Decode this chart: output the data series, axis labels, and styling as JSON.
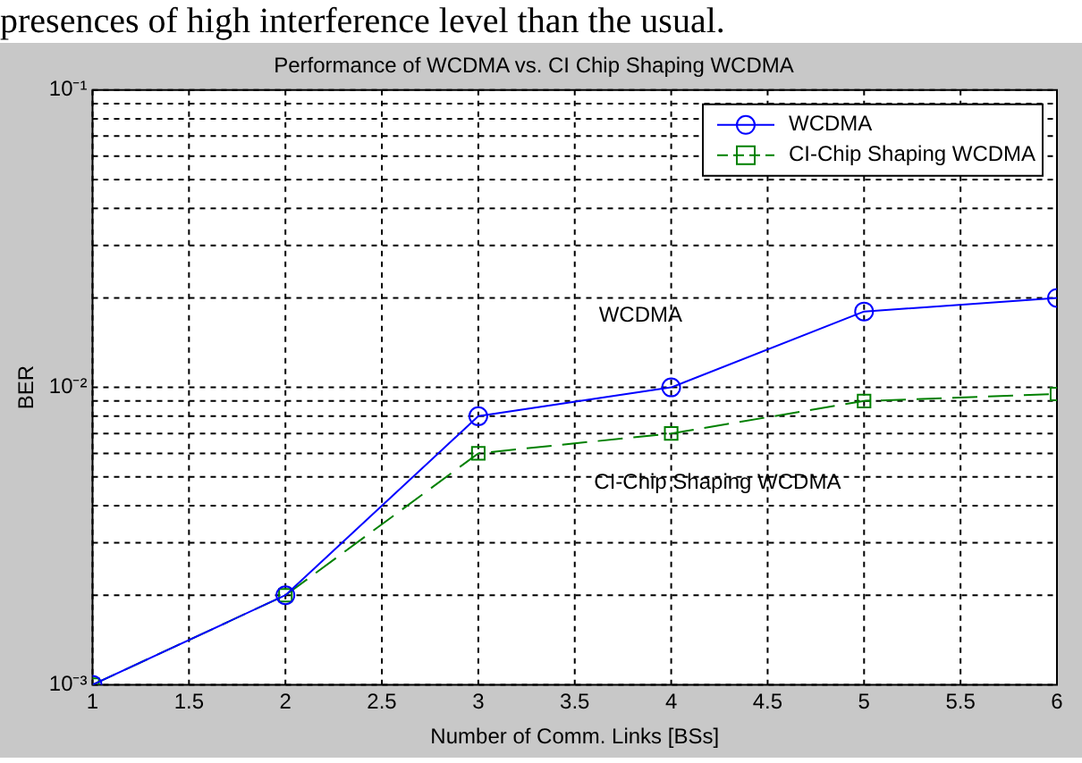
{
  "chart_data": {
    "type": "line",
    "title": "Performance of WCDMA vs. CI Chip Shaping WCDMA",
    "xlabel": "Number of Comm. Links [BSs]",
    "ylabel": "BER",
    "x": [
      1,
      2,
      3,
      4,
      5,
      6
    ],
    "series": [
      {
        "name": "WCDMA",
        "color": "#0000ff",
        "values": [
          0.001,
          0.002,
          0.008,
          0.01,
          0.018,
          0.02
        ],
        "marker": "circle",
        "line_style": "solid"
      },
      {
        "name": "CI-Chip Shaping WCDMA",
        "color": "#008000",
        "values": [
          0.001,
          0.002,
          0.006,
          0.007,
          0.009,
          0.0095
        ],
        "marker": "square",
        "line_style": "dashed"
      }
    ],
    "log": "y",
    "xlim": [
      1,
      6
    ],
    "xticks": [
      1,
      1.5,
      2,
      2.5,
      3,
      3.5,
      4,
      4.5,
      5,
      5.5,
      6
    ],
    "ylim": [
      0.001,
      0.1
    ],
    "yticks": [
      {
        "value": 0.001,
        "label": "10⁻³"
      },
      {
        "value": 0.002,
        "label": null
      },
      {
        "value": 0.003,
        "label": null
      },
      {
        "value": 0.004,
        "label": null
      },
      {
        "value": 0.005,
        "label": null
      },
      {
        "value": 0.006,
        "label": null
      },
      {
        "value": 0.007,
        "label": null
      },
      {
        "value": 0.008,
        "label": null
      },
      {
        "value": 0.009,
        "label": null
      },
      {
        "value": 0.01,
        "label": "10⁻²"
      },
      {
        "value": 0.02,
        "label": null
      },
      {
        "value": 0.03,
        "label": null
      },
      {
        "value": 0.04,
        "label": null
      },
      {
        "value": 0.05,
        "label": null
      },
      {
        "value": 0.06,
        "label": null
      },
      {
        "value": 0.07,
        "label": null
      },
      {
        "value": 0.08,
        "label": null
      },
      {
        "value": 0.09,
        "label": null
      },
      {
        "value": 0.1,
        "label": "10⁻¹"
      }
    ],
    "grid": true,
    "legend": "top right",
    "annotations": [
      "presences of high interference level than the usual.",
      "WCDMA",
      "CI-Chip Shaping WCDMA"
    ]
  }
}
